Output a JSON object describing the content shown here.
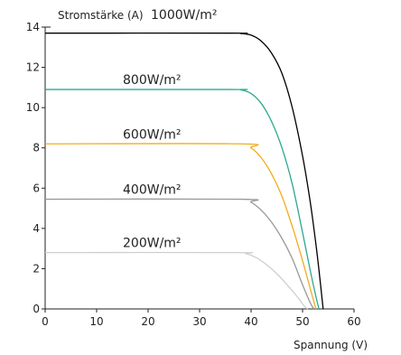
{
  "chart_data": {
    "type": "line",
    "ylabel": "Stromstärke (A)",
    "xlabel": "Spannung (V)",
    "xlim": [
      0,
      60
    ],
    "ylim": [
      0,
      14
    ],
    "x_ticks": [
      0,
      10,
      20,
      30,
      40,
      50,
      60
    ],
    "y_ticks": [
      0,
      2,
      4,
      6,
      8,
      10,
      12,
      14
    ],
    "grid": false,
    "series": [
      {
        "name": "1000W/m²",
        "color": "#000000",
        "points": [
          [
            0,
            13.7
          ],
          [
            36,
            13.7
          ],
          [
            38,
            13.68
          ],
          [
            40,
            13.6
          ],
          [
            42,
            13.3
          ],
          [
            44,
            12.7
          ],
          [
            46,
            11.7
          ],
          [
            48,
            10.0
          ],
          [
            50,
            7.6
          ],
          [
            51.5,
            5.3
          ],
          [
            52.7,
            3.0
          ],
          [
            53.5,
            1.2
          ],
          [
            54.0,
            0
          ]
        ]
      },
      {
        "name": "800W/m²",
        "color": "#2aa98f",
        "points": [
          [
            0,
            10.9
          ],
          [
            36,
            10.9
          ],
          [
            38,
            10.88
          ],
          [
            40,
            10.7
          ],
          [
            42,
            10.2
          ],
          [
            44,
            9.3
          ],
          [
            46,
            8.0
          ],
          [
            48,
            6.2
          ],
          [
            50,
            3.8
          ],
          [
            51.5,
            1.9
          ],
          [
            52.7,
            0.5
          ],
          [
            53.2,
            0
          ]
        ]
      },
      {
        "name": "600W/m²",
        "color": "#f2ac1c",
        "points": [
          [
            0,
            8.2
          ],
          [
            38,
            8.2
          ],
          [
            40,
            8.0
          ],
          [
            42,
            7.5
          ],
          [
            44,
            6.7
          ],
          [
            46,
            5.6
          ],
          [
            48,
            4.1
          ],
          [
            50,
            2.4
          ],
          [
            51.5,
            1.0
          ],
          [
            52.6,
            0
          ]
        ]
      },
      {
        "name": "400W/m²",
        "color": "#999999",
        "points": [
          [
            0,
            5.45
          ],
          [
            38,
            5.45
          ],
          [
            40,
            5.3
          ],
          [
            42,
            4.9
          ],
          [
            44,
            4.3
          ],
          [
            46,
            3.5
          ],
          [
            48,
            2.5
          ],
          [
            50,
            1.2
          ],
          [
            51.5,
            0.3
          ],
          [
            52.2,
            0
          ]
        ]
      },
      {
        "name": "200W/m²",
        "color": "#cfcfcf",
        "points": [
          [
            0,
            2.8
          ],
          [
            37,
            2.8
          ],
          [
            39,
            2.75
          ],
          [
            41,
            2.55
          ],
          [
            43,
            2.2
          ],
          [
            45,
            1.75
          ],
          [
            47,
            1.2
          ],
          [
            49,
            0.6
          ],
          [
            50.3,
            0.15
          ],
          [
            51,
            0
          ]
        ]
      }
    ]
  }
}
